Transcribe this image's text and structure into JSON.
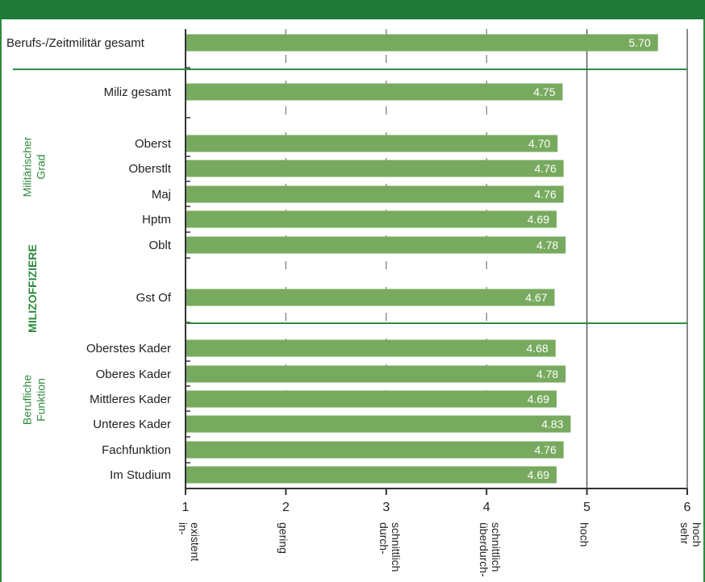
{
  "chart_data": {
    "type": "bar",
    "orientation": "horizontal",
    "categories": [
      "Berufs-/Zeitmilitär gesamt",
      "Miliz gesamt",
      "Oberst",
      "Oberstlt",
      "Maj",
      "Hptm",
      "Oblt",
      "Gst Of",
      "Oberstes Kader",
      "Oberes Kader",
      "Mittleres Kader",
      "Unteres Kader",
      "Fachfunktion",
      "Im Studium"
    ],
    "values": [
      5.7,
      4.75,
      4.7,
      4.76,
      4.76,
      4.69,
      4.78,
      4.67,
      4.68,
      4.78,
      4.69,
      4.83,
      4.76,
      4.69
    ],
    "value_labels": [
      "5.70",
      "4.75",
      "4.70",
      "4.76",
      "4.76",
      "4.69",
      "4.78",
      "4.67",
      "4.68",
      "4.78",
      "4.69",
      "4.83",
      "4.76",
      "4.69"
    ],
    "xlim": [
      1,
      6
    ],
    "x_ticks": [
      1,
      2,
      3,
      4,
      5,
      6
    ],
    "x_tick_labels": [
      "1",
      "2",
      "3",
      "4",
      "5",
      "6"
    ],
    "x_tick_descriptions": [
      "in-\nexistent",
      "gering",
      "durch-\nschnittlich",
      "überdurch-\nschnittlich",
      "hoch",
      "sehr\nhoch"
    ],
    "group_labels": [
      "Militärischer\nGrad",
      "MILIZOFFIZIERE",
      "Berufliche\nFunktion"
    ],
    "grid": true,
    "bar_color": "#77aa5e",
    "accent_color": "#2e8a3e",
    "banner_color": "#1f7a3a"
  }
}
